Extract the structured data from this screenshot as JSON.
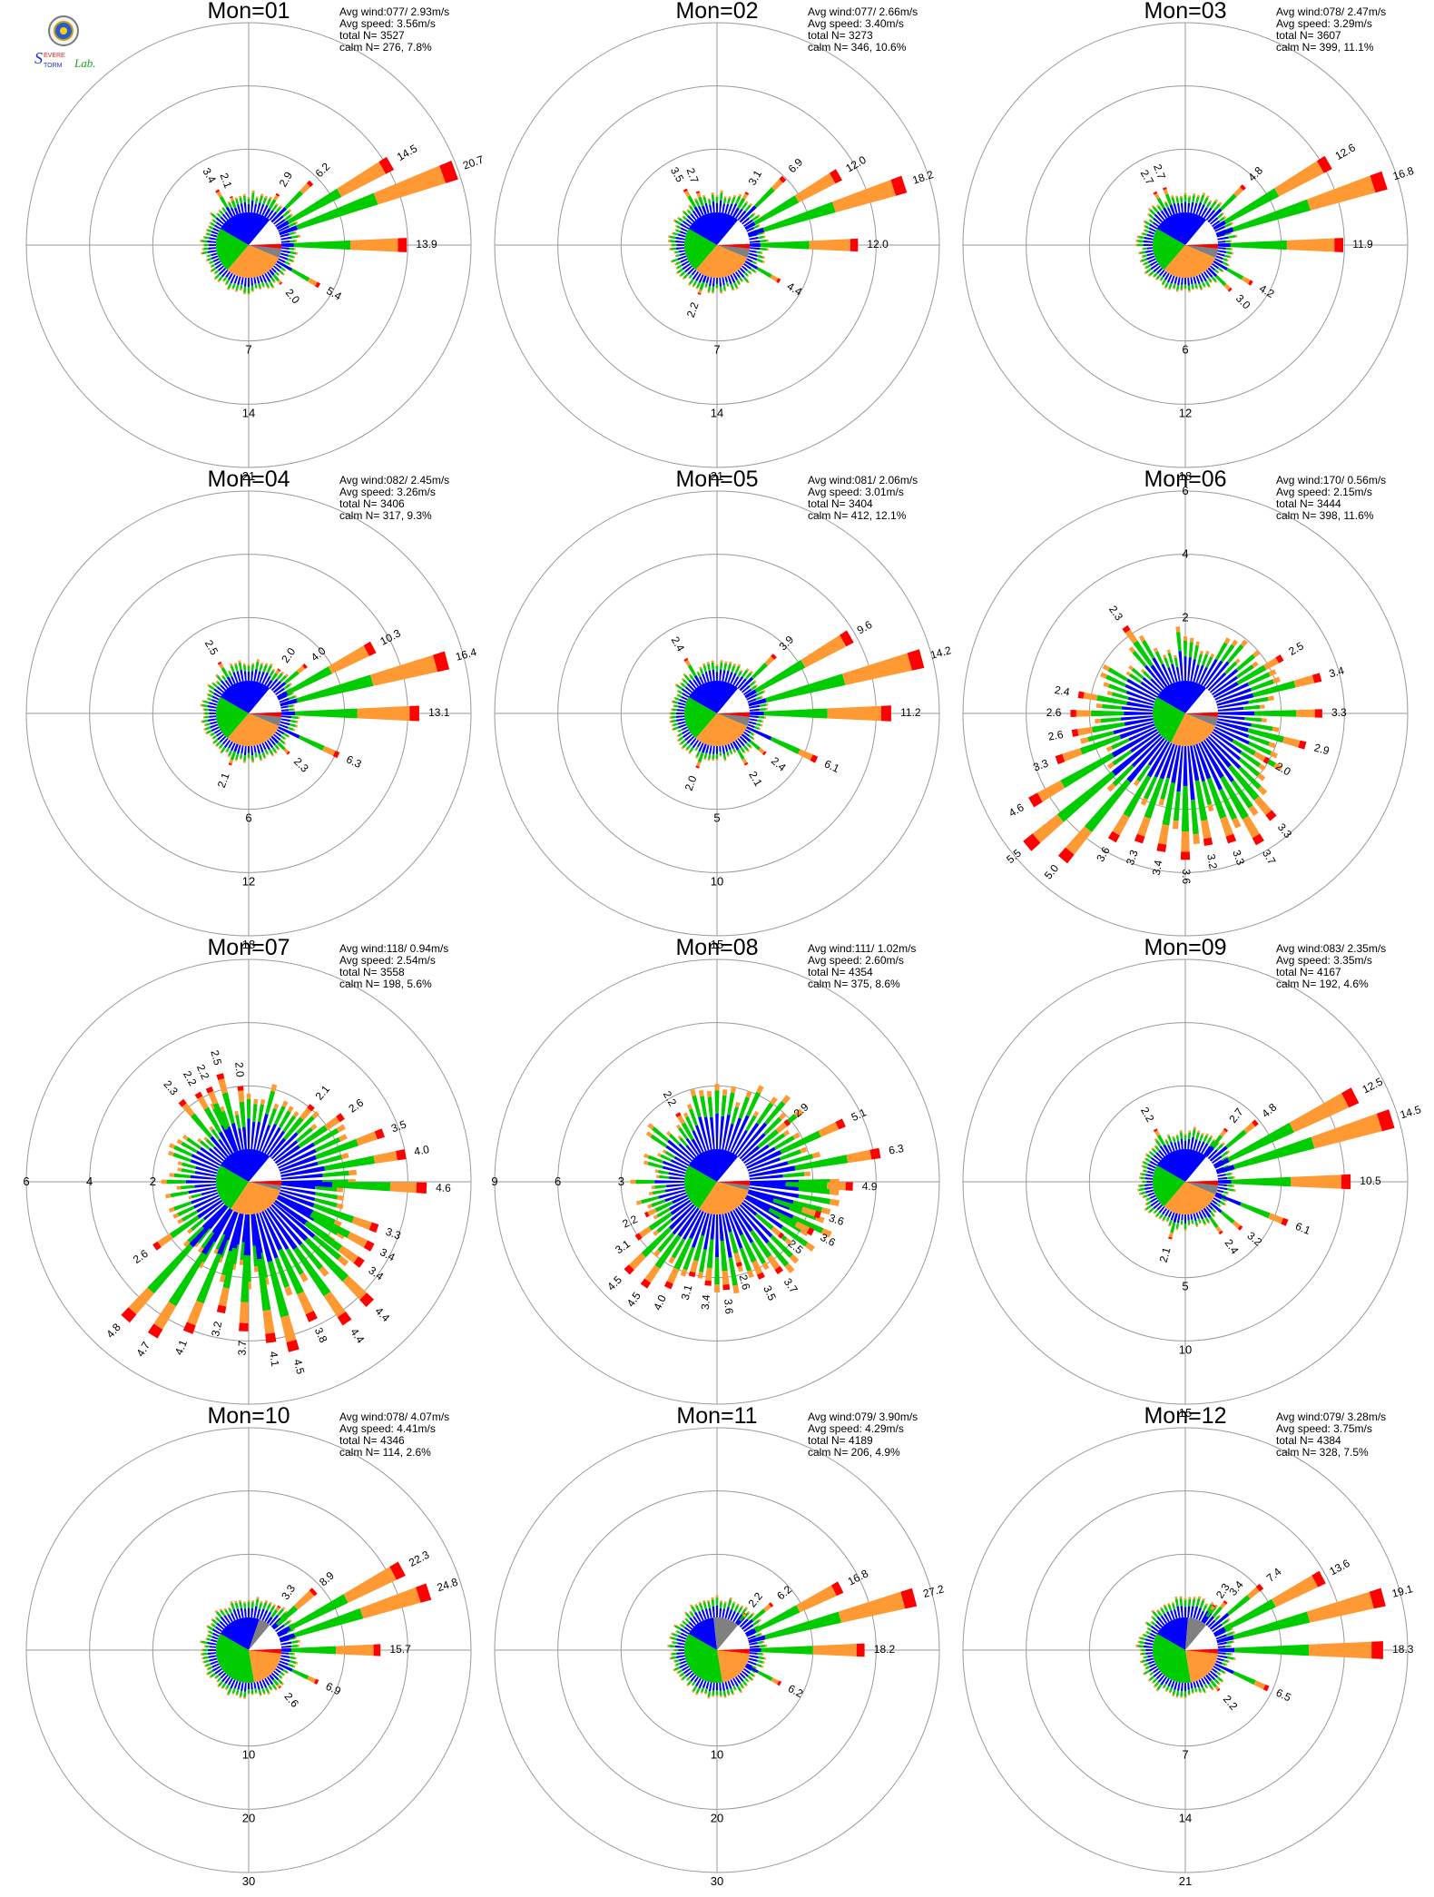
{
  "logo": {
    "text_line1": "Severe",
    "text_line2": "Storm",
    "text_line3": "Lab."
  },
  "colors": {
    "blue": "#0000ff",
    "green": "#00cc00",
    "orange": "#ff9933",
    "red": "#ff0000",
    "gray": "#808080",
    "white": "#ffffff"
  },
  "chart_data": [
    {
      "type": "windrose",
      "title": "Mon=01",
      "stats": [
        "Avg wind:077/ 2.93m/s",
        "Avg speed: 3.56m/s",
        "total N=      3527",
        "calm N=    276,   7.8%"
      ],
      "ring_labels": [
        "7",
        "14",
        "21"
      ],
      "ring_values": [
        7,
        14,
        21
      ],
      "ring_axis": "south",
      "center_dir": 25,
      "pie": [
        0.3,
        0.18,
        0.3,
        0.22
      ],
      "bars": [
        {
          "dir": 60,
          "v": 14.5,
          "label": "14.5"
        },
        {
          "dir": 70,
          "v": 20.7,
          "label": "20.7"
        },
        {
          "dir": 90,
          "v": 13.9,
          "label": "13.9"
        },
        {
          "dir": 45,
          "v": 6.2,
          "label": "6.2"
        },
        {
          "dir": 30,
          "v": 2.9,
          "label": "2.9"
        },
        {
          "dir": 120,
          "v": 5.4,
          "label": "5.4"
        },
        {
          "dir": 140,
          "v": 2.0,
          "label": "2.0"
        },
        {
          "dir": 330,
          "v": 3.4,
          "label": "3.4"
        },
        {
          "dir": 340,
          "v": 2.1,
          "label": "2.1"
        }
      ]
    },
    {
      "type": "windrose",
      "title": "Mon=02",
      "stats": [
        "Avg wind:077/ 2.66m/s",
        "Avg speed: 3.40m/s",
        "total N=      3273",
        "calm N=    346,  10.6%"
      ],
      "ring_labels": [
        "7",
        "14",
        "21"
      ],
      "ring_values": [
        7,
        14,
        21
      ],
      "ring_axis": "south",
      "center_dir": 25,
      "pie": [
        0.3,
        0.18,
        0.3,
        0.22
      ],
      "bars": [
        {
          "dir": 60,
          "v": 12.0,
          "label": "12.0"
        },
        {
          "dir": 72,
          "v": 18.2,
          "label": "18.2"
        },
        {
          "dir": 90,
          "v": 12.0,
          "label": "12.0"
        },
        {
          "dir": 45,
          "v": 6.9,
          "label": "6.9"
        },
        {
          "dir": 30,
          "v": 3.1,
          "label": "3.1"
        },
        {
          "dir": 120,
          "v": 4.4,
          "label": "4.4"
        },
        {
          "dir": 330,
          "v": 3.5,
          "label": "3.5"
        },
        {
          "dir": 340,
          "v": 2.7,
          "label": "2.7"
        },
        {
          "dir": 200,
          "v": 2.2,
          "label": "2.2"
        }
      ]
    },
    {
      "type": "windrose",
      "title": "Mon=03",
      "stats": [
        "Avg wind:078/ 2.47m/s",
        "Avg speed: 3.29m/s",
        "total N=      3607",
        "calm N=    399,  11.1%"
      ],
      "ring_labels": [
        "6",
        "12",
        "18"
      ],
      "ring_values": [
        6,
        12,
        18
      ],
      "ring_axis": "south",
      "center_dir": 25,
      "pie": [
        0.3,
        0.18,
        0.3,
        0.22
      ],
      "bars": [
        {
          "dir": 60,
          "v": 12.6,
          "label": "12.6"
        },
        {
          "dir": 72,
          "v": 16.8,
          "label": "16.8"
        },
        {
          "dir": 90,
          "v": 11.9,
          "label": "11.9"
        },
        {
          "dir": 45,
          "v": 4.8,
          "label": "4.8"
        },
        {
          "dir": 120,
          "v": 4.2,
          "label": "4.2"
        },
        {
          "dir": 135,
          "v": 3.0,
          "label": "3.0"
        },
        {
          "dir": 330,
          "v": 2.7,
          "label": "2.7"
        },
        {
          "dir": 340,
          "v": 2.7,
          "label": "2.7"
        }
      ]
    },
    {
      "type": "windrose",
      "title": "Mon=04",
      "stats": [
        "Avg wind:082/ 2.45m/s",
        "Avg speed: 3.26m/s",
        "total N=      3406",
        "calm N=    317,   9.3%"
      ],
      "ring_labels": [
        "6",
        "12",
        "18"
      ],
      "ring_values": [
        6,
        12,
        18
      ],
      "ring_axis": "south",
      "center_dir": 25,
      "pie": [
        0.3,
        0.18,
        0.3,
        0.22
      ],
      "bars": [
        {
          "dir": 62,
          "v": 10.3,
          "label": "10.3"
        },
        {
          "dir": 75,
          "v": 16.4,
          "label": "16.4"
        },
        {
          "dir": 90,
          "v": 13.1,
          "label": "13.1"
        },
        {
          "dir": 50,
          "v": 4.0,
          "label": "4.0"
        },
        {
          "dir": 35,
          "v": 2.0,
          "label": "2.0"
        },
        {
          "dir": 115,
          "v": 6.3,
          "label": "6.3"
        },
        {
          "dir": 135,
          "v": 2.3,
          "label": "2.3"
        },
        {
          "dir": 330,
          "v": 2.5,
          "label": "2.5"
        },
        {
          "dir": 200,
          "v": 2.1,
          "label": "2.1"
        }
      ]
    },
    {
      "type": "windrose",
      "title": "Mon=05",
      "stats": [
        "Avg wind:081/ 2.06m/s",
        "Avg speed: 3.01m/s",
        "total N=      3404",
        "calm N=    412,  12.1%"
      ],
      "ring_labels": [
        "5",
        "10",
        "15"
      ],
      "ring_values": [
        5,
        10,
        15
      ],
      "ring_axis": "south",
      "center_dir": 25,
      "pie": [
        0.3,
        0.18,
        0.3,
        0.22
      ],
      "bars": [
        {
          "dir": 60,
          "v": 9.6,
          "label": "9.6"
        },
        {
          "dir": 75,
          "v": 14.2,
          "label": "14.2"
        },
        {
          "dir": 90,
          "v": 11.2,
          "label": "11.2"
        },
        {
          "dir": 45,
          "v": 3.9,
          "label": "3.9"
        },
        {
          "dir": 115,
          "v": 6.1,
          "label": "6.1"
        },
        {
          "dir": 130,
          "v": 2.4,
          "label": "2.4"
        },
        {
          "dir": 150,
          "v": 2.1,
          "label": "2.1"
        },
        {
          "dir": 330,
          "v": 2.4,
          "label": "2.4"
        },
        {
          "dir": 200,
          "v": 2.0,
          "label": "2.0"
        }
      ]
    },
    {
      "type": "windrose",
      "title": "Mon=06",
      "stats": [
        "Avg wind:170/ 0.56m/s",
        "Avg speed: 2.15m/s",
        "total N=      3444",
        "calm N=    398,  11.6%"
      ],
      "ring_labels": [
        "2",
        "4",
        "6"
      ],
      "ring_values": [
        2,
        4,
        6
      ],
      "ring_axis": "north",
      "center_dir": 170,
      "pie": [
        0.32,
        0.16,
        0.26,
        0.26
      ],
      "bars": [
        {
          "dir": 60,
          "v": 2.5,
          "label": "2.5"
        },
        {
          "dir": 75,
          "v": 3.4,
          "label": "3.4"
        },
        {
          "dir": 90,
          "v": 3.3,
          "label": "3.3"
        },
        {
          "dir": 105,
          "v": 2.9,
          "label": "2.9"
        },
        {
          "dir": 120,
          "v": 2.0,
          "label": "2.0"
        },
        {
          "dir": 140,
          "v": 3.3,
          "label": "3.3"
        },
        {
          "dir": 150,
          "v": 3.7,
          "label": "3.7"
        },
        {
          "dir": 160,
          "v": 3.3,
          "label": "3.3"
        },
        {
          "dir": 170,
          "v": 3.2,
          "label": "3.2"
        },
        {
          "dir": 180,
          "v": 3.6,
          "label": "3.6"
        },
        {
          "dir": 190,
          "v": 3.4,
          "label": "3.4"
        },
        {
          "dir": 200,
          "v": 3.3,
          "label": "3.3"
        },
        {
          "dir": 210,
          "v": 3.6,
          "label": "3.6"
        },
        {
          "dir": 220,
          "v": 5.0,
          "label": "5.0"
        },
        {
          "dir": 230,
          "v": 5.5,
          "label": "5.5"
        },
        {
          "dir": 240,
          "v": 4.6,
          "label": "4.6"
        },
        {
          "dir": 250,
          "v": 3.3,
          "label": "3.3"
        },
        {
          "dir": 260,
          "v": 2.6,
          "label": "2.6"
        },
        {
          "dir": 270,
          "v": 2.6,
          "label": "2.6"
        },
        {
          "dir": 280,
          "v": 2.4,
          "label": "2.4"
        },
        {
          "dir": 325,
          "v": 2.3,
          "label": "2.3"
        }
      ]
    },
    {
      "type": "windrose",
      "title": "Mon=07",
      "stats": [
        "Avg wind:118/ 0.94m/s",
        "Avg speed: 2.54m/s",
        "total N=      3558",
        "calm N=    198,   5.6%"
      ],
      "ring_labels": [
        "2",
        "4",
        "6"
      ],
      "ring_values": [
        2,
        4,
        6
      ],
      "ring_axis": "west",
      "center_dir": 118,
      "pie": [
        0.3,
        0.16,
        0.3,
        0.24
      ],
      "bars": [
        {
          "dir": 40,
          "v": 2.1,
          "label": "2.1"
        },
        {
          "dir": 55,
          "v": 2.6,
          "label": "2.6"
        },
        {
          "dir": 70,
          "v": 3.5,
          "label": "3.5"
        },
        {
          "dir": 80,
          "v": 4.0,
          "label": "4.0"
        },
        {
          "dir": 92,
          "v": 4.6,
          "label": "4.6"
        },
        {
          "dir": 110,
          "v": 3.3,
          "label": "3.3"
        },
        {
          "dir": 118,
          "v": 3.4,
          "label": "3.4"
        },
        {
          "dir": 126,
          "v": 3.4,
          "label": "3.4"
        },
        {
          "dir": 135,
          "v": 4.4,
          "label": "4.4"
        },
        {
          "dir": 145,
          "v": 4.4,
          "label": "4.4"
        },
        {
          "dir": 155,
          "v": 3.8,
          "label": "3.8"
        },
        {
          "dir": 165,
          "v": 4.5,
          "label": "4.5"
        },
        {
          "dir": 172,
          "v": 4.1,
          "label": "4.1"
        },
        {
          "dir": 182,
          "v": 3.7,
          "label": "3.7"
        },
        {
          "dir": 192,
          "v": 3.2,
          "label": "3.2"
        },
        {
          "dir": 202,
          "v": 4.1,
          "label": "4.1"
        },
        {
          "dir": 212,
          "v": 4.7,
          "label": "4.7"
        },
        {
          "dir": 222,
          "v": 4.8,
          "label": "4.8"
        },
        {
          "dir": 235,
          "v": 2.6,
          "label": "2.6"
        },
        {
          "dir": 320,
          "v": 2.3,
          "label": "2.3"
        },
        {
          "dir": 330,
          "v": 2.2,
          "label": "2.2"
        },
        {
          "dir": 337,
          "v": 2.2,
          "label": "2.2"
        },
        {
          "dir": 345,
          "v": 2.5,
          "label": "2.5"
        },
        {
          "dir": 355,
          "v": 2.0,
          "label": "2.0"
        }
      ]
    },
    {
      "type": "windrose",
      "title": "Mon=08",
      "stats": [
        "Avg wind:111/ 1.02m/s",
        "Avg speed: 2.60m/s",
        "total N=      4354",
        "calm N=    375,   8.6%"
      ],
      "ring_labels": [
        "3",
        "6",
        "9"
      ],
      "ring_values": [
        3,
        6,
        9
      ],
      "ring_axis": "west",
      "center_dir": 111,
      "pie": [
        0.3,
        0.16,
        0.3,
        0.24
      ],
      "bars": [
        {
          "dir": 50,
          "v": 2.9,
          "label": "2.9"
        },
        {
          "dir": 65,
          "v": 5.1,
          "label": "5.1"
        },
        {
          "dir": 80,
          "v": 6.3,
          "label": "6.3"
        },
        {
          "dir": 92,
          "v": 4.9,
          "label": "4.9"
        },
        {
          "dir": 108,
          "v": 3.6,
          "label": "3.6"
        },
        {
          "dir": 118,
          "v": 3.6,
          "label": "3.6"
        },
        {
          "dir": 130,
          "v": 2.5,
          "label": "2.5"
        },
        {
          "dir": 145,
          "v": 3.7,
          "label": "3.7"
        },
        {
          "dir": 155,
          "v": 3.5,
          "label": "3.5"
        },
        {
          "dir": 165,
          "v": 2.6,
          "label": "2.6"
        },
        {
          "dir": 175,
          "v": 3.6,
          "label": "3.6"
        },
        {
          "dir": 185,
          "v": 3.4,
          "label": "3.4"
        },
        {
          "dir": 195,
          "v": 3.1,
          "label": "3.1"
        },
        {
          "dir": 205,
          "v": 4.0,
          "label": "4.0"
        },
        {
          "dir": 215,
          "v": 4.5,
          "label": "4.5"
        },
        {
          "dir": 225,
          "v": 4.5,
          "label": "4.5"
        },
        {
          "dir": 235,
          "v": 3.1,
          "label": "3.1"
        },
        {
          "dir": 245,
          "v": 2.2,
          "label": "2.2"
        },
        {
          "dir": 330,
          "v": 2.2,
          "label": "2.2"
        }
      ]
    },
    {
      "type": "windrose",
      "title": "Mon=09",
      "stats": [
        "Avg wind:083/ 2.35m/s",
        "Avg speed: 3.35m/s",
        "total N=      4167",
        "calm N=    192,   4.6%"
      ],
      "ring_labels": [
        "5",
        "10",
        "15"
      ],
      "ring_values": [
        5,
        10,
        15
      ],
      "ring_axis": "south",
      "center_dir": 25,
      "pie": [
        0.3,
        0.18,
        0.3,
        0.22
      ],
      "bars": [
        {
          "dir": 63,
          "v": 12.5,
          "label": "12.5"
        },
        {
          "dir": 73,
          "v": 14.5,
          "label": "14.5"
        },
        {
          "dir": 90,
          "v": 10.5,
          "label": "10.5"
        },
        {
          "dir": 50,
          "v": 4.8,
          "label": "4.8"
        },
        {
          "dir": 38,
          "v": 2.7,
          "label": "2.7"
        },
        {
          "dir": 112,
          "v": 6.1,
          "label": "6.1"
        },
        {
          "dir": 130,
          "v": 3.2,
          "label": "3.2"
        },
        {
          "dir": 145,
          "v": 2.4,
          "label": "2.4"
        },
        {
          "dir": 330,
          "v": 2.2,
          "label": "2.2"
        },
        {
          "dir": 195,
          "v": 2.1,
          "label": "2.1"
        }
      ]
    },
    {
      "type": "windrose",
      "title": "Mon=10",
      "stats": [
        "Avg wind:078/ 4.07m/s",
        "Avg speed: 4.41m/s",
        "total N=      4346",
        "calm N=    114,   2.6%"
      ],
      "ring_labels": [
        "10",
        "20",
        "30"
      ],
      "ring_values": [
        10,
        20,
        30
      ],
      "ring_axis": "south",
      "center_dir": 25,
      "pie": [
        0.22,
        0.12,
        0.3,
        0.36
      ],
      "bars": [
        {
          "dir": 62,
          "v": 22.3,
          "label": "22.3"
        },
        {
          "dir": 72,
          "v": 24.8,
          "label": "24.8"
        },
        {
          "dir": 90,
          "v": 15.7,
          "label": "15.7"
        },
        {
          "dir": 48,
          "v": 8.9,
          "label": "8.9"
        },
        {
          "dir": 35,
          "v": 3.3,
          "label": "3.3"
        },
        {
          "dir": 115,
          "v": 6.9,
          "label": "6.9"
        },
        {
          "dir": 140,
          "v": 2.6,
          "label": "2.6"
        }
      ]
    },
    {
      "type": "windrose",
      "title": "Mon=11",
      "stats": [
        "Avg wind:079/ 3.90m/s",
        "Avg speed: 4.29m/s",
        "total N=      4189",
        "calm N=    206,   4.9%"
      ],
      "ring_labels": [
        "10",
        "20",
        "30"
      ],
      "ring_values": [
        10,
        20,
        30
      ],
      "ring_axis": "south",
      "center_dir": 25,
      "pie": [
        0.15,
        0.15,
        0.34,
        0.36
      ],
      "bars": [
        {
          "dir": 63,
          "v": 16.8,
          "label": "16.8"
        },
        {
          "dir": 75,
          "v": 27.2,
          "label": "27.2"
        },
        {
          "dir": 90,
          "v": 18.2,
          "label": "18.2"
        },
        {
          "dir": 50,
          "v": 6.2,
          "label": "6.2"
        },
        {
          "dir": 38,
          "v": 2.2,
          "label": "2.2"
        },
        {
          "dir": 118,
          "v": 6.2,
          "label": "6.2"
        }
      ]
    },
    {
      "type": "windrose",
      "title": "Mon=12",
      "stats": [
        "Avg wind:079/ 3.28m/s",
        "Avg speed: 3.75m/s",
        "total N=      4384",
        "calm N=    328,   7.5%"
      ],
      "ring_labels": [
        "7",
        "14",
        "21"
      ],
      "ring_values": [
        7,
        14,
        21
      ],
      "ring_axis": "south",
      "center_dir": 25,
      "pie": [
        0.18,
        0.14,
        0.32,
        0.36
      ],
      "bars": [
        {
          "dir": 62,
          "v": 13.6,
          "label": "13.6"
        },
        {
          "dir": 75,
          "v": 19.1,
          "label": "19.1"
        },
        {
          "dir": 90,
          "v": 18.3,
          "label": "18.3"
        },
        {
          "dir": 50,
          "v": 7.4,
          "label": "7.4"
        },
        {
          "dir": 40,
          "v": 3.4,
          "label": "3.4"
        },
        {
          "dir": 33,
          "v": 2.3,
          "label": "2.3"
        },
        {
          "dir": 115,
          "v": 6.5,
          "label": "6.5"
        },
        {
          "dir": 140,
          "v": 2.2,
          "label": "2.2"
        }
      ]
    }
  ]
}
